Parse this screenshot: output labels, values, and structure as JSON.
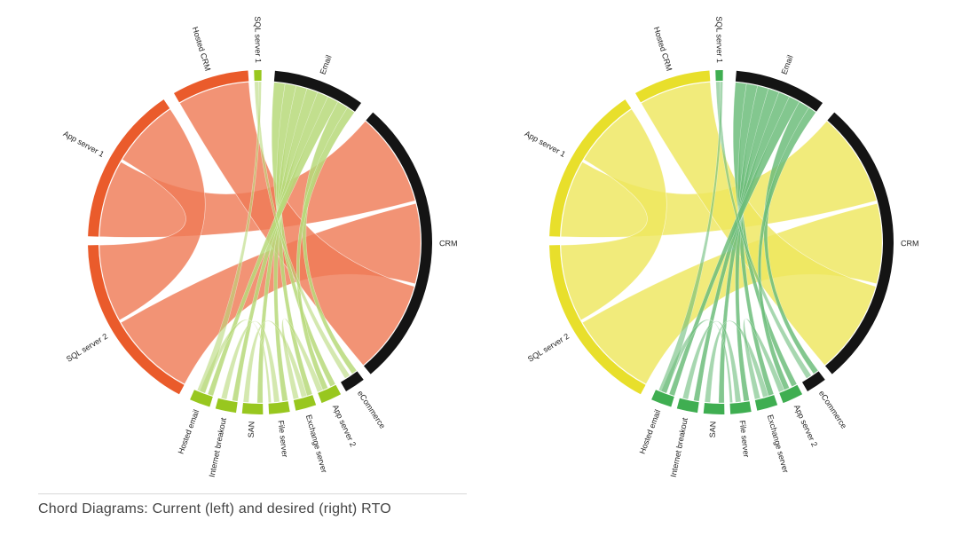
{
  "caption": "Chord Diagrams: Current (left) and desired (right) RTO",
  "colors": {
    "black_group": "#141414",
    "ribbon_light_green": "#b7d97a",
    "ribbon_green": "#6dbd7b"
  },
  "diagrams": [
    {
      "title": "Current (left)",
      "primary_color": "#ea5b2b",
      "primary_ribbon": "#ef7b57",
      "green_group": "#98c71f",
      "green_ribbon": "#b7d97a",
      "labels": [
        "Email",
        "CRM",
        "eCommerce",
        "App server 2",
        "Exchange server",
        "File server",
        "SAN",
        "Internet breakout",
        "Hosted email",
        "SQL server 2",
        "App server 1",
        "Hosted CRM",
        "SQL server 1"
      ]
    },
    {
      "title": "Desired (right)",
      "primary_color": "#e8df2b",
      "primary_ribbon": "#eee65e",
      "green_group": "#3fae51",
      "green_ribbon": "#6dbd7b",
      "labels": [
        "Email",
        "CRM",
        "eCommerce",
        "App server 2",
        "Exchange server",
        "File server",
        "SAN",
        "Internet breakout",
        "Hosted email",
        "SQL server 2",
        "App server 1",
        "Hosted CRM",
        "SQL server 1"
      ]
    }
  ]
}
